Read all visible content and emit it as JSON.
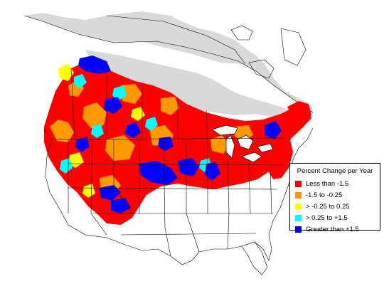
{
  "legend": {
    "title": "Percent Change per Year",
    "items": [
      {
        "label": "Less than -1.5",
        "color": "#ff0000"
      },
      {
        "label": "-1.5 to -0.25",
        "color": "#ff9900"
      },
      {
        "label": "> -0.25 to 0.25",
        "color": "#ffff00"
      },
      {
        "label": "> 0.25 to +1.5",
        "color": "#00ffff"
      },
      {
        "label": "Greater than +1.5",
        "color": "#0000ff"
      }
    ]
  },
  "colors": {
    "unsurveyed": "#d9d9d9",
    "border": "#000000",
    "background": "#ffffff"
  }
}
